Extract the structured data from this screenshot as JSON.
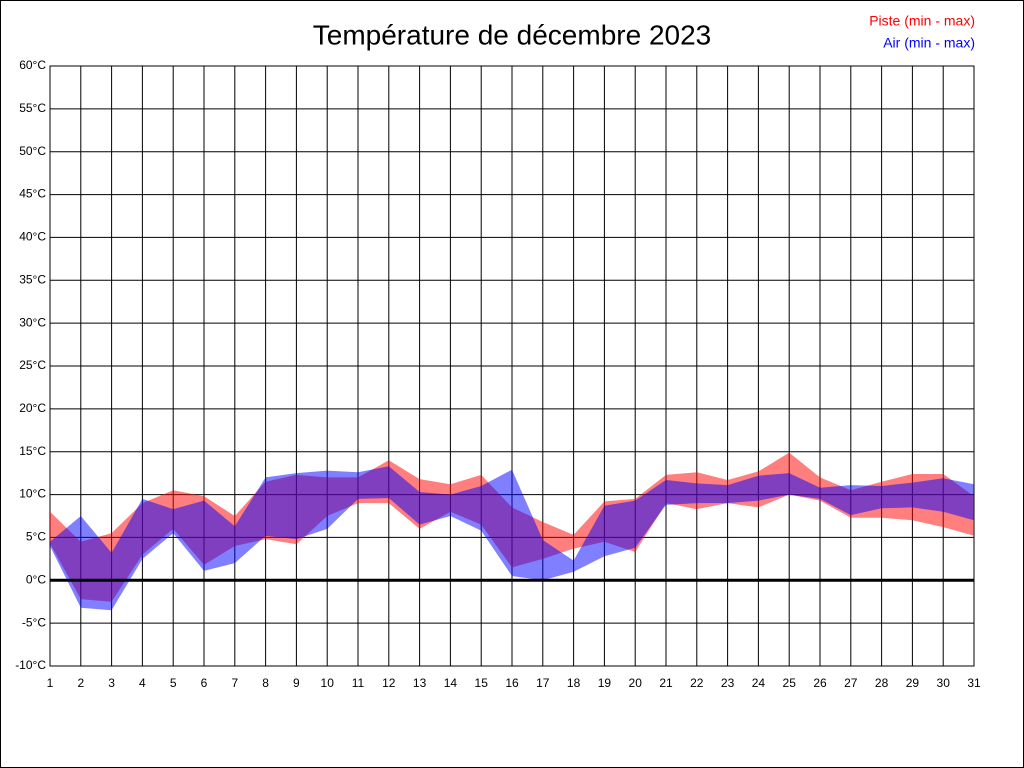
{
  "chart_data": {
    "type": "range-area",
    "title": "Température de décembre 2023",
    "x": [
      1,
      2,
      3,
      4,
      5,
      6,
      7,
      8,
      9,
      10,
      11,
      12,
      13,
      14,
      15,
      16,
      17,
      18,
      19,
      20,
      21,
      22,
      23,
      24,
      25,
      26,
      27,
      28,
      29,
      30,
      31
    ],
    "xlim": [
      1,
      31
    ],
    "ylim": [
      -10,
      60
    ],
    "yticks": [
      {
        "value": -10,
        "label": "-10°C"
      },
      {
        "value": -5,
        "label": "-5°C"
      },
      {
        "value": 0,
        "label": "0°C"
      },
      {
        "value": 5,
        "label": "5°C"
      },
      {
        "value": 10,
        "label": "10°C"
      },
      {
        "value": 15,
        "label": "15°C"
      },
      {
        "value": 20,
        "label": "20°C"
      },
      {
        "value": 25,
        "label": "25°C"
      },
      {
        "value": 30,
        "label": "30°C"
      },
      {
        "value": 35,
        "label": "35°C"
      },
      {
        "value": 40,
        "label": "40°C"
      },
      {
        "value": 45,
        "label": "45°C"
      },
      {
        "value": 50,
        "label": "50°C"
      },
      {
        "value": 55,
        "label": "55°C"
      },
      {
        "value": 60,
        "label": "60°C"
      }
    ],
    "grid": true,
    "zero_line": true,
    "legend": "top-right",
    "series": [
      {
        "name": "Piste (min - max)",
        "color": "#ff0000",
        "low": [
          4.3,
          -2.2,
          -2.5,
          3,
          6,
          1.8,
          4,
          4.8,
          4.2,
          7.5,
          9,
          9,
          6,
          8,
          6.5,
          1.5,
          2.5,
          3.7,
          4.5,
          3.3,
          9,
          8.3,
          9,
          8.5,
          10,
          9.3,
          7.3,
          7.3,
          7,
          6.2,
          5.2
        ],
        "high": [
          8,
          4.5,
          5.5,
          9,
          10.5,
          9.8,
          7.5,
          11.5,
          12.3,
          12,
          12,
          14,
          11.8,
          11.2,
          12.3,
          8.5,
          6.8,
          5.3,
          9.2,
          9.5,
          12.3,
          12.6,
          11.7,
          12.7,
          14.9,
          12,
          10.5,
          11.5,
          12.4,
          12.4,
          9.8
        ]
      },
      {
        "name": "Air (min - max)",
        "color": "#0000ff",
        "low": [
          4,
          -3.2,
          -3.5,
          2.5,
          5.5,
          1.1,
          2,
          5.2,
          4.8,
          6,
          9.5,
          9.6,
          6.5,
          7.5,
          5.8,
          0.5,
          0,
          1,
          2.8,
          3.8,
          8.8,
          9,
          9,
          9.3,
          10,
          9.5,
          7.6,
          8.4,
          8.5,
          8,
          7
        ],
        "high": [
          4.5,
          7.5,
          3.2,
          9.5,
          8.3,
          9.3,
          6.3,
          12,
          12.5,
          12.8,
          12.6,
          13.3,
          10.3,
          10,
          11,
          12.9,
          4.7,
          2.3,
          8.7,
          9.3,
          11.7,
          11.3,
          11.1,
          12.2,
          12.5,
          10.8,
          11.1,
          11,
          11.4,
          11.9,
          11.2
        ]
      }
    ]
  }
}
